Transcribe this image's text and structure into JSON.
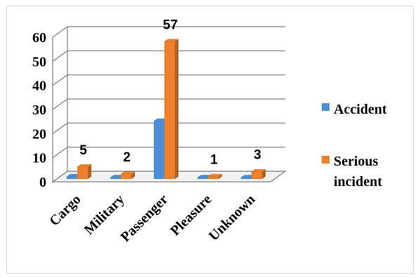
{
  "chart_data": {
    "type": "bar",
    "categories": [
      "Cargo",
      "Military",
      "Passenger",
      "Pleasure",
      "Unknown"
    ],
    "series": [
      {
        "name": "Accident",
        "values": [
          1,
          0,
          24,
          0,
          0
        ],
        "color": "#4a8fd8"
      },
      {
        "name": "Serious incident",
        "values": [
          5,
          2,
          57,
          1,
          3
        ],
        "color": "#f07f2a"
      }
    ],
    "data_labels": [
      "5",
      "2",
      "57",
      "1",
      "3"
    ],
    "y_ticks": [
      "0",
      "10",
      "20",
      "30",
      "40",
      "50",
      "60"
    ],
    "ylim": [
      0,
      60
    ],
    "grid": true,
    "legend_position": "right",
    "legend": [
      "Accident",
      "Serious",
      "incident"
    ]
  }
}
